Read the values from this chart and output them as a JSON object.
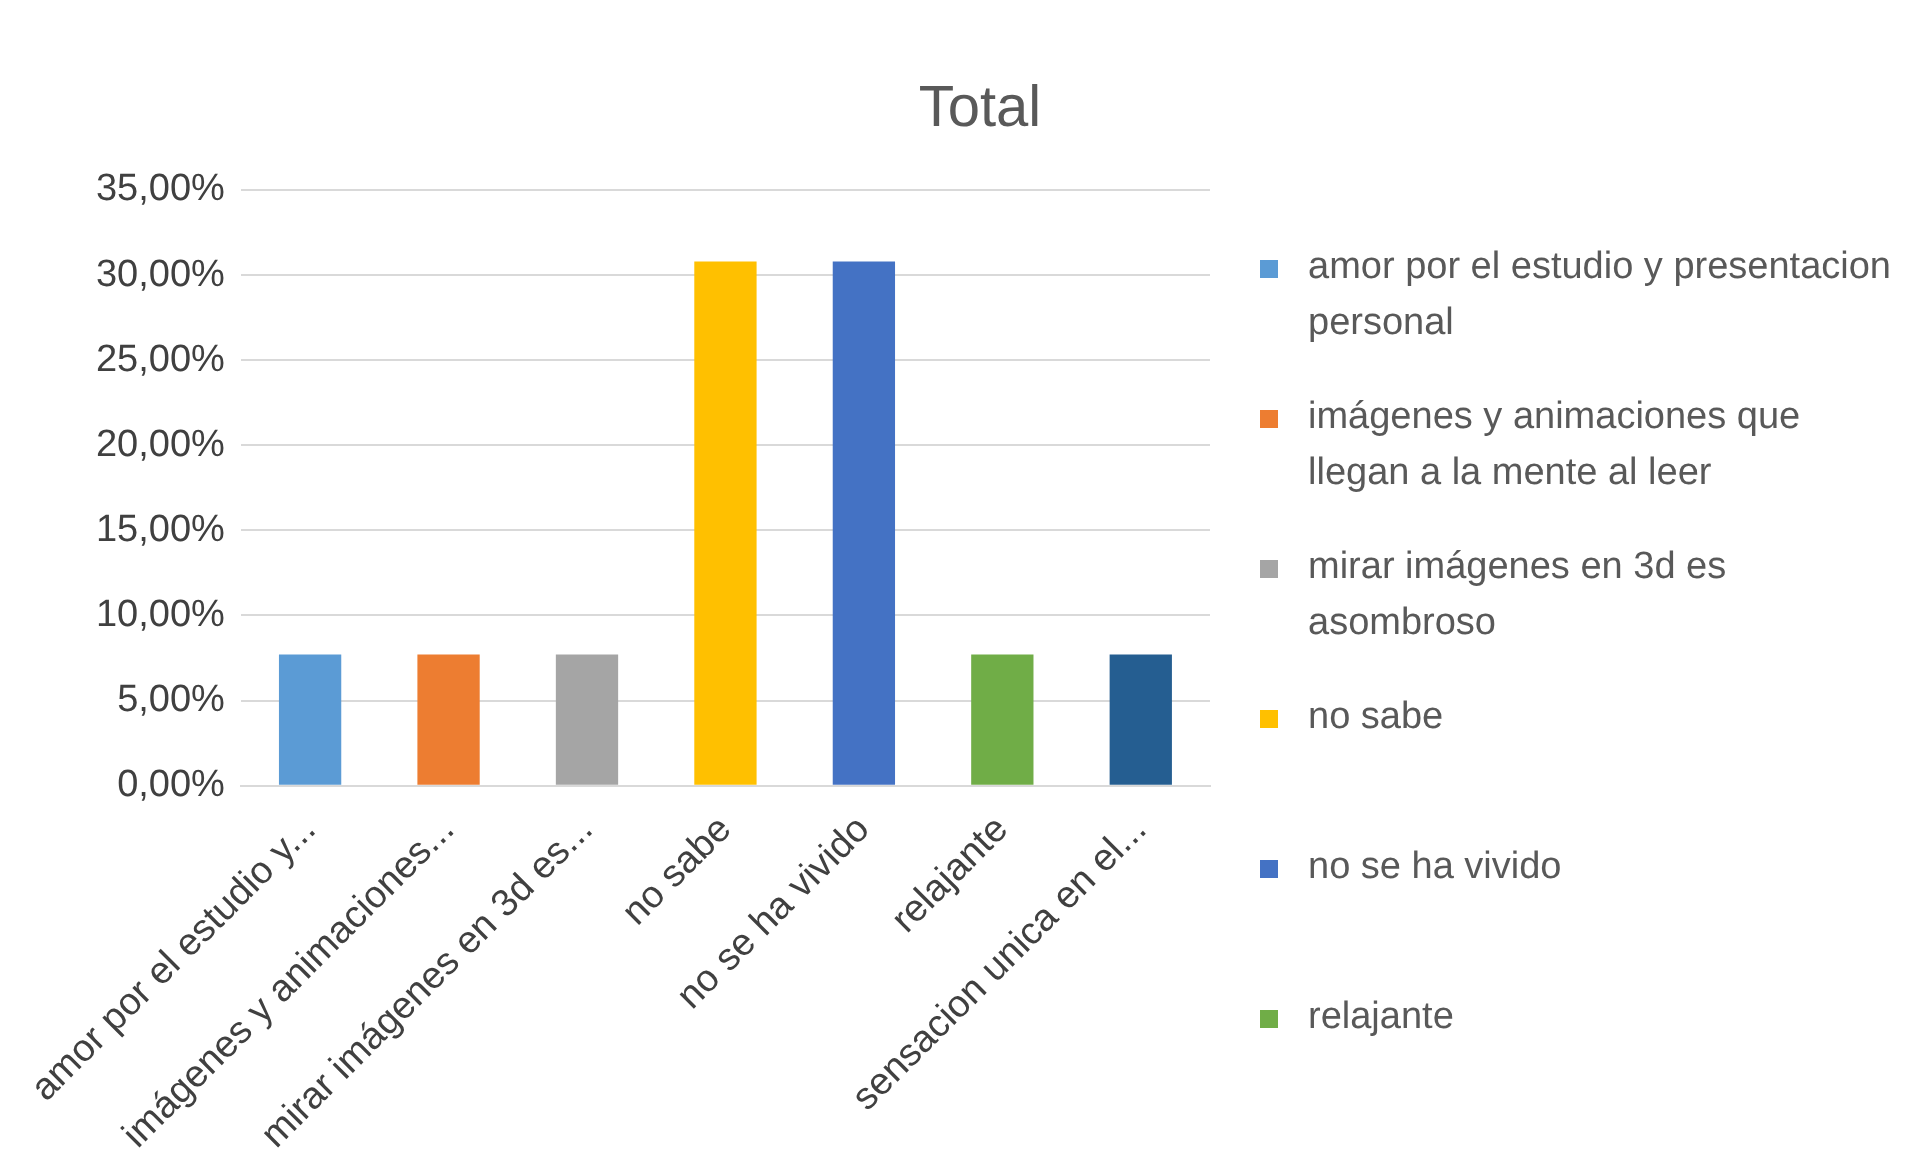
{
  "chart_data": {
    "type": "bar",
    "title": "Total",
    "stacked": true,
    "legend": "right",
    "grid": "y",
    "categories": [
      "amor por el estudio y...",
      "imágenes y animaciones...",
      "mirar imágenes en 3d es...",
      "no sabe",
      "no se ha vivido",
      "relajante",
      "sensacion unica en el..."
    ],
    "series": [
      {
        "name": "amor por el estudio y presentacion personal",
        "color": "#5b9bd5",
        "values": [
          7.7,
          null,
          null,
          null,
          null,
          null,
          null
        ]
      },
      {
        "name": "imágenes y animaciones que llegan a la mente al leer",
        "color": "#ed7d31",
        "values": [
          null,
          7.7,
          null,
          null,
          null,
          null,
          null
        ]
      },
      {
        "name": "mirar imágenes en 3d es asombroso",
        "color": "#a5a5a5",
        "values": [
          null,
          null,
          7.7,
          null,
          null,
          null,
          null
        ]
      },
      {
        "name": "no sabe",
        "color": "#ffc000",
        "values": [
          null,
          null,
          null,
          30.8,
          null,
          null,
          null
        ]
      },
      {
        "name": "no se ha vivido",
        "color": "#4472c4",
        "values": [
          null,
          null,
          null,
          null,
          30.8,
          null,
          null
        ]
      },
      {
        "name": "relajante",
        "color": "#70ad47",
        "values": [
          null,
          null,
          null,
          null,
          null,
          7.7,
          null
        ]
      },
      {
        "color": "#255e91",
        "values": [
          null,
          null,
          null,
          null,
          null,
          null,
          7.7
        ]
      }
    ],
    "ylim": [
      0,
      35
    ],
    "yticks": [
      {
        "value": 0,
        "label": "0,00%"
      },
      {
        "value": 5,
        "label": "5,00%"
      },
      {
        "value": 10,
        "label": "10,00%"
      },
      {
        "value": 15,
        "label": "15,00%"
      },
      {
        "value": 20,
        "label": "20,00%"
      },
      {
        "value": 25,
        "label": "25,00%"
      },
      {
        "value": 30,
        "label": "30,00%"
      },
      {
        "value": 35,
        "label": "35,00%"
      }
    ]
  }
}
